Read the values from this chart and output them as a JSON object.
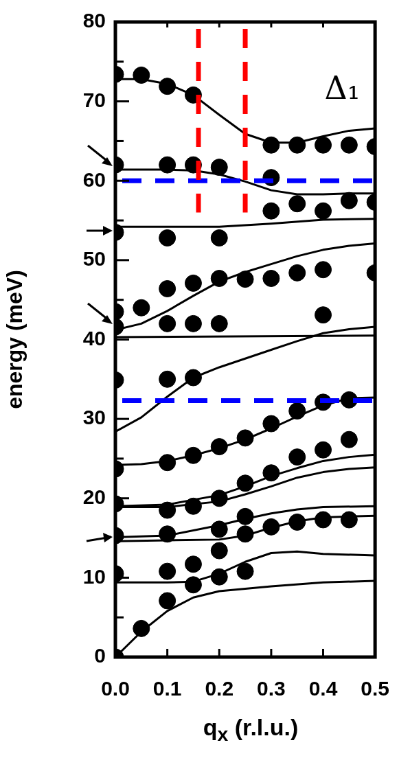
{
  "chart_data": {
    "type": "line",
    "xlabel": "q$_{x}$ (r.l.u.)",
    "ylabel": "energy (meV)",
    "annotations": [
      "Δ₁"
    ],
    "xlim": [
      0,
      0.5
    ],
    "xticks": [
      {
        "value": 0,
        "label": "0.0"
      },
      {
        "value": 0.1,
        "label": "0.1"
      },
      {
        "value": 0.2,
        "label": "0.2"
      },
      {
        "value": 0.3,
        "label": "0.3"
      },
      {
        "value": 0.4,
        "label": "0.4"
      },
      {
        "value": 0.5,
        "label": "0.5"
      }
    ],
    "ylim": [
      0,
      80
    ],
    "yticks": [
      0,
      {
        "value": 5,
        "label": null
      },
      10,
      {
        "value": 15,
        "label": null
      },
      20,
      {
        "value": 25,
        "label": null
      },
      30,
      {
        "value": 35,
        "label": null
      },
      40,
      {
        "value": 45,
        "label": null
      },
      50,
      {
        "value": 55,
        "label": null
      },
      60,
      {
        "value": 65,
        "label": null
      },
      70,
      {
        "value": 75,
        "label": null
      },
      80
    ],
    "grid": false,
    "legend": false,
    "line_style": "solid",
    "ref_lines": [
      {
        "axis": "y",
        "value": 60,
        "color": "#0000ff",
        "line_style": "dashed"
      },
      {
        "axis": "y",
        "value": 32.3,
        "color": "#0000ff",
        "line_style": "dashed"
      },
      {
        "axis": "x",
        "value": 0.16,
        "color": "#ff0000",
        "line_style": "dashed"
      },
      {
        "axis": "x",
        "value": 0.25,
        "color": "#ff0000",
        "line_style": "dashed"
      }
    ],
    "series": [
      {
        "type": "scatter",
        "marker": "circle",
        "color": "#000000",
        "x": [
          0,
          0.05,
          0.1,
          0.15,
          0.3,
          0.35,
          0.4,
          0.45,
          0.5,
          0,
          0.1,
          0.15,
          0.2,
          0.3,
          0.3,
          0.35,
          0.4,
          0.45,
          0.5,
          0,
          0.1,
          0.2,
          0,
          0,
          0.05,
          0.1,
          0.15,
          0.2,
          0.25,
          0.3,
          0.35,
          0.4,
          0.5,
          0.1,
          0.15,
          0.2,
          0.4,
          0,
          0.1,
          0.15,
          0.4,
          0.45,
          0.35,
          0.3,
          0.25,
          0.2,
          0.15,
          0.1,
          0,
          0.45,
          0.4,
          0.35,
          0.3,
          0.25,
          0.2,
          0.15,
          0.1,
          0,
          0,
          0.1,
          0.2,
          0.2,
          0.25,
          0.25,
          0.3,
          0.35,
          0.4,
          0.45,
          0,
          0.1,
          0.15,
          0.25,
          0.2,
          0.15,
          0.1,
          0.05,
          0
        ],
        "values": [
          73.4,
          73.3,
          71.9,
          70.8,
          64.5,
          64.5,
          64.5,
          64.5,
          64.3,
          62,
          62,
          62,
          61.7,
          60.4,
          56.2,
          57.1,
          56.2,
          57.5,
          57.3,
          53.5,
          52.8,
          52.8,
          43.5,
          41.6,
          44,
          46.4,
          47.1,
          47.7,
          47.6,
          47.7,
          48.4,
          48.8,
          48.4,
          42,
          42,
          42,
          43.1,
          34.9,
          35,
          35.2,
          32.1,
          32.4,
          31,
          29.4,
          27.6,
          26.5,
          25.4,
          24.5,
          23.7,
          27.4,
          26.1,
          25.2,
          23.2,
          21.9,
          20,
          19,
          18.5,
          19.3,
          15.3,
          15.5,
          16.1,
          13.4,
          17.7,
          15.5,
          16.4,
          17,
          17.3,
          17.3,
          10.5,
          10.8,
          11.7,
          10.8,
          10.1,
          9.1,
          7.1,
          3.6,
          0
        ]
      },
      {
        "color": "#000000",
        "x": [
          0,
          0.05,
          0.1,
          0.15,
          0.2,
          0.25,
          0.3,
          0.35,
          0.4,
          0.45,
          0.5
        ],
        "values": [
          72.8,
          72.8,
          72.2,
          70.8,
          68.3,
          65.9,
          64.8,
          64.8,
          65.6,
          66.3,
          66.6
        ]
      },
      {
        "color": "#000000",
        "x": [
          0,
          0.1,
          0.15,
          0.2,
          0.25,
          0.3,
          0.35,
          0.4,
          0.45,
          0.5
        ],
        "values": [
          61.4,
          61.4,
          61.3,
          60.8,
          59.9,
          58.8,
          58.3,
          58.3,
          58.4,
          58.4
        ]
      },
      {
        "color": "#000000",
        "x": [
          0,
          0.1,
          0.2,
          0.3,
          0.4,
          0.5
        ],
        "values": [
          54.2,
          54.2,
          54.2,
          54.6,
          55.1,
          55.2
        ]
      },
      {
        "color": "#000000",
        "x": [
          0,
          0.05,
          0.1,
          0.15,
          0.2,
          0.25,
          0.3,
          0.35,
          0.4,
          0.45,
          0.5
        ],
        "values": [
          41.2,
          42,
          43.6,
          45.5,
          47.3,
          48.5,
          49.5,
          50.5,
          51.3,
          51.8,
          52.1
        ]
      },
      {
        "color": "#000000",
        "x": [
          0,
          0.5
        ],
        "values": [
          40.3,
          40.5
        ]
      },
      {
        "color": "#000000",
        "x": [
          0,
          0.05,
          0.1,
          0.15,
          0.2,
          0.25,
          0.3,
          0.35,
          0.4,
          0.45,
          0.5
        ],
        "values": [
          28.4,
          30.2,
          32.8,
          35.2,
          36.5,
          37.6,
          38.7,
          39.8,
          40.8,
          41.3,
          41.6
        ]
      },
      {
        "color": "#000000",
        "x": [
          0,
          0.05,
          0.1,
          0.15,
          0.2,
          0.25,
          0.3,
          0.35,
          0.4,
          0.45,
          0.5
        ],
        "values": [
          24.2,
          24.3,
          24.7,
          25.4,
          26.3,
          27.4,
          28.8,
          30.3,
          31.7,
          32.6,
          32.7
        ]
      },
      {
        "color": "#000000",
        "x": [
          0,
          0.1,
          0.2,
          0.25,
          0.3,
          0.35,
          0.4,
          0.45,
          0.5
        ],
        "values": [
          19,
          19.2,
          20.4,
          21.5,
          22.8,
          23.8,
          24.7,
          25.2,
          25.5
        ]
      },
      {
        "color": "#000000",
        "x": [
          0,
          0.1,
          0.2,
          0.25,
          0.3,
          0.35,
          0.4,
          0.45,
          0.5
        ],
        "values": [
          18.9,
          18.9,
          19.6,
          20.5,
          21.5,
          22.6,
          23.3,
          23.7,
          23.9
        ]
      },
      {
        "color": "#000000",
        "x": [
          0,
          0.1,
          0.2,
          0.25,
          0.3,
          0.35,
          0.4,
          0.5
        ],
        "values": [
          15.1,
          15.3,
          16.6,
          17.4,
          18.1,
          18.6,
          18.9,
          19
        ]
      },
      {
        "color": "#000000",
        "x": [
          0,
          0.1,
          0.2,
          0.25,
          0.3,
          0.35,
          0.4,
          0.5
        ],
        "values": [
          14.6,
          14.7,
          14.8,
          15.3,
          16.3,
          17.1,
          17.6,
          17.8
        ]
      },
      {
        "color": "#000000",
        "x": [
          0,
          0.1,
          0.15,
          0.2,
          0.25,
          0.3,
          0.35,
          0.4,
          0.5
        ],
        "values": [
          9.4,
          9.4,
          9.5,
          10.5,
          12,
          13.1,
          13.3,
          13,
          12.8
        ]
      },
      {
        "color": "#000000",
        "x": [
          0,
          0.05,
          0.1,
          0.15,
          0.2,
          0.3,
          0.4,
          0.5
        ],
        "values": [
          0,
          3.2,
          5.8,
          7.5,
          8.3,
          8.9,
          9.4,
          9.6
        ]
      }
    ]
  }
}
